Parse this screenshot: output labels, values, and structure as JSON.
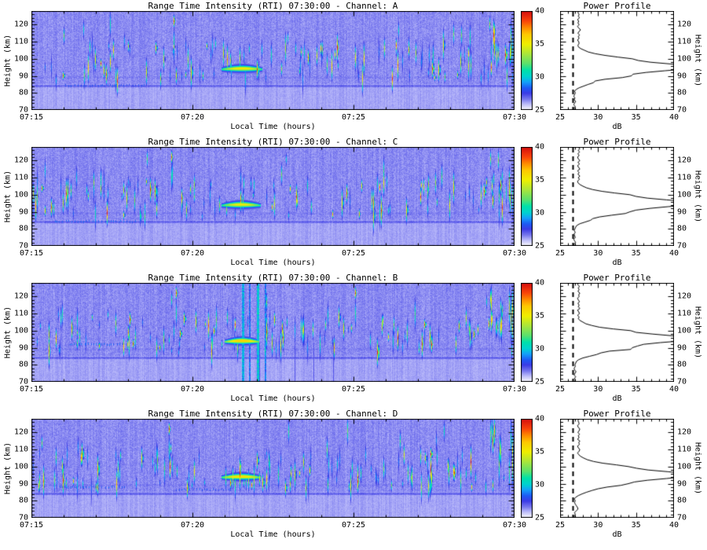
{
  "labels": {
    "profile_title": "Power Profile",
    "time_label": "Local Time (hours)",
    "height_label": "Height (km)",
    "db_label": "dB",
    "time_ticks": [
      "07:15",
      "07:20",
      "07:25",
      "07:30"
    ],
    "height_ticks": [
      "70",
      "80",
      "90",
      "100",
      "110",
      "120"
    ],
    "colorbar_ticks": [
      "40",
      "35",
      "30",
      "25"
    ],
    "db_ticks": [
      "25",
      "30",
      "35",
      "40"
    ]
  },
  "channels": [
    {
      "id": "A",
      "title": "Range Time Intensity (RTI) 07:30:00 - Channel: A"
    },
    {
      "id": "C",
      "title": "Range Time Intensity (RTI) 07:30:00 - Channel: C"
    },
    {
      "id": "B",
      "title": "Range Time Intensity (RTI) 07:30:00 - Channel: B"
    },
    {
      "id": "D",
      "title": "Range Time Intensity (RTI) 07:30:00 - Channel: D"
    }
  ],
  "colors": {
    "axis": "#000000",
    "plot_bg": "#ffffff",
    "colormap": [
      [
        25.0,
        "#fafaff"
      ],
      [
        26.0,
        "#afaff8"
      ],
      [
        26.6,
        "#7878ee"
      ],
      [
        27.5,
        "#3c3ce6"
      ],
      [
        28.3,
        "#1e5af5"
      ],
      [
        29.2,
        "#14a0fa"
      ],
      [
        30.0,
        "#00d2d2"
      ],
      [
        31.0,
        "#00e1aa"
      ],
      [
        32.0,
        "#5ae16e"
      ],
      [
        33.5,
        "#aae63c"
      ],
      [
        35.0,
        "#f0f000"
      ],
      [
        36.5,
        "#ffc800"
      ],
      [
        37.5,
        "#ff8c00"
      ],
      [
        38.5,
        "#fa460a"
      ],
      [
        40.0,
        "#d70f0f"
      ]
    ]
  },
  "chart_data": [
    {
      "name": "channel-A",
      "rti": {
        "type": "heatmap",
        "title": "Range Time Intensity (RTI) 07:30:00 - Channel: A",
        "x_range": [
          "07:15",
          "07:30"
        ],
        "x_minutes": 15,
        "y_range": [
          70,
          128
        ],
        "value_range": [
          25,
          40
        ],
        "background_db": 26.3,
        "seed": 101,
        "streaks": 115,
        "dark_band_h": [
          83.2,
          84.9
        ],
        "features": {
          "blob": {
            "x0": 0.395,
            "x1": 0.478,
            "h": 93.8,
            "peak": 35.5
          },
          "red_tops": [
            0.295
          ],
          "edge_cluster": 0.962,
          "low_streaks": [
            {
              "x0": 0.07,
              "x1": 0.24,
              "h": 84.3,
              "peak": 28.8
            }
          ],
          "vertical_bands": [],
          "dark_lines": []
        }
      },
      "profile": {
        "type": "line",
        "title": "Power Profile",
        "xlabel": "dB",
        "x_range": [
          25,
          40
        ],
        "y_range": [
          70,
          128
        ],
        "noise_floor_db": 26.7,
        "h_start": 70,
        "h_step": 1,
        "db": [
          26.9,
          26.85,
          27.0,
          26.8,
          26.9,
          27.05,
          26.85,
          26.95,
          26.8,
          26.9,
          27.0,
          26.9,
          27.1,
          27.5,
          28.1,
          28.7,
          29.4,
          29.6,
          30.9,
          33.2,
          34.4,
          34.6,
          36.3,
          38.8,
          41.5,
          42.5,
          41.8,
          39.5,
          36.9,
          35.3,
          34.5,
          32.6,
          30.9,
          29.6,
          28.7,
          28.2,
          27.7,
          27.4,
          27.35,
          27.5,
          27.45,
          27.3,
          27.5,
          27.4,
          27.55,
          27.35,
          27.5,
          27.7,
          27.45,
          27.3,
          27.5,
          27.35,
          27.45,
          27.3,
          27.55,
          27.4,
          27.5,
          27.35,
          27.45
        ]
      }
    },
    {
      "name": "channel-C",
      "rti": {
        "type": "heatmap",
        "title": "Range Time Intensity (RTI) 07:30:00 - Channel: C",
        "x_range": [
          "07:15",
          "07:30"
        ],
        "x_minutes": 15,
        "y_range": [
          70,
          128
        ],
        "value_range": [
          25,
          40
        ],
        "background_db": 26.3,
        "seed": 202,
        "streaks": 120,
        "dark_band_h": [
          83.2,
          84.9
        ],
        "features": {
          "blob": {
            "x0": 0.395,
            "x1": 0.475,
            "h": 93.7,
            "peak": 35.2
          },
          "red_tops": [
            0.29
          ],
          "edge_cluster": 0.963,
          "low_streaks": [
            {
              "x0": 0.05,
              "x1": 0.22,
              "h": 84.3,
              "peak": 29.5
            }
          ],
          "vertical_bands": [],
          "dark_lines": []
        }
      },
      "profile": {
        "type": "line",
        "title": "Power Profile",
        "xlabel": "dB",
        "x_range": [
          25,
          40
        ],
        "y_range": [
          70,
          128
        ],
        "noise_floor_db": 26.7,
        "h_start": 70,
        "h_step": 1,
        "db": [
          26.95,
          26.8,
          27.05,
          26.9,
          26.8,
          27.0,
          26.9,
          26.85,
          27.0,
          26.85,
          26.95,
          27.05,
          27.2,
          27.6,
          28.3,
          29.0,
          29.3,
          30.2,
          31.8,
          33.6,
          34.2,
          35.0,
          36.8,
          39.2,
          41.8,
          42.8,
          41.5,
          39.0,
          36.5,
          35.0,
          34.2,
          32.2,
          30.5,
          29.3,
          28.5,
          28.0,
          27.6,
          27.35,
          27.3,
          27.55,
          27.4,
          27.6,
          27.35,
          27.5,
          27.3,
          27.6,
          27.45,
          27.3,
          27.55,
          27.35,
          27.6,
          27.4,
          27.3,
          27.5,
          27.35,
          27.55,
          27.4,
          27.6,
          27.35
        ]
      }
    },
    {
      "name": "channel-B",
      "rti": {
        "type": "heatmap",
        "title": "Range Time Intensity (RTI) 07:30:00 - Channel: B",
        "x_range": [
          "07:15",
          "07:30"
        ],
        "x_minutes": 15,
        "y_range": [
          70,
          128
        ],
        "value_range": [
          25,
          40
        ],
        "background_db": 26.3,
        "seed": 303,
        "streaks": 118,
        "dark_band_h": [
          83.2,
          84.9
        ],
        "features": {
          "blob": {
            "x0": 0.4,
            "x1": 0.47,
            "h": 93.5,
            "peak": 36.5
          },
          "red_tops": [
            0.3,
            0.67
          ],
          "edge_cluster": 0.962,
          "low_streaks": [
            {
              "x0": 0.08,
              "x1": 0.2,
              "h": 92.0,
              "peak": 29.5
            }
          ],
          "vertical_bands": [
            {
              "x": 0.437,
              "peak": 30.5,
              "w": 3
            },
            {
              "x": 0.452,
              "peak": 29.5,
              "w": 2
            },
            {
              "x": 0.467,
              "peak": 31.0,
              "w": 3
            },
            {
              "x": 0.483,
              "peak": 29.8,
              "w": 2
            }
          ],
          "dark_lines": [
            0.472,
            0.545,
            0.585,
            0.625
          ]
        }
      },
      "profile": {
        "type": "line",
        "title": "Power Profile",
        "xlabel": "dB",
        "x_range": [
          25,
          40
        ],
        "y_range": [
          70,
          128
        ],
        "noise_floor_db": 26.7,
        "h_start": 70,
        "h_step": 1,
        "db": [
          26.85,
          27.0,
          26.9,
          27.05,
          26.85,
          26.95,
          27.1,
          26.9,
          26.85,
          27.0,
          26.95,
          27.05,
          27.15,
          27.45,
          28.0,
          28.9,
          29.8,
          30.4,
          31.5,
          34.3,
          34.5,
          35.2,
          36.0,
          38.2,
          41.0,
          42.2,
          41.6,
          39.8,
          37.2,
          35.0,
          34.3,
          32.0,
          30.2,
          29.2,
          28.4,
          28.0,
          27.6,
          27.4,
          27.5,
          27.3,
          27.55,
          27.45,
          27.3,
          27.6,
          27.4,
          27.5,
          27.35,
          27.55,
          27.4,
          27.3,
          27.5,
          27.45,
          27.6,
          27.35,
          27.5,
          27.4,
          27.55,
          27.3,
          27.45
        ]
      }
    },
    {
      "name": "channel-D",
      "rti": {
        "type": "heatmap",
        "title": "Range Time Intensity (RTI) 07:30:00 - Channel: D",
        "x_range": [
          "07:15",
          "07:30"
        ],
        "x_minutes": 15,
        "y_range": [
          70,
          128
        ],
        "value_range": [
          25,
          40
        ],
        "background_db": 26.3,
        "seed": 404,
        "streaks": 135,
        "dark_band_h": [
          83.2,
          84.9
        ],
        "features": {
          "blob": {
            "x0": 0.395,
            "x1": 0.475,
            "h": 93.6,
            "peak": 35.8
          },
          "red_tops": [
            0.285
          ],
          "edge_cluster": 0.96,
          "low_streaks": [
            {
              "x0": 0.06,
              "x1": 0.2,
              "h": 88.0,
              "peak": 29.3
            },
            {
              "x0": 0.3,
              "x1": 0.42,
              "h": 86.5,
              "peak": 28.8
            }
          ],
          "vertical_bands": [],
          "dark_lines": []
        }
      },
      "profile": {
        "type": "line",
        "title": "Power Profile",
        "xlabel": "dB",
        "x_range": [
          25,
          40
        ],
        "y_range": [
          70,
          128
        ],
        "noise_floor_db": 26.7,
        "h_start": 70,
        "h_step": 1,
        "db": [
          26.9,
          26.85,
          27.0,
          26.9,
          27.1,
          27.35,
          27.3,
          27.15,
          27.0,
          26.9,
          27.0,
          26.85,
          27.05,
          27.4,
          27.9,
          28.5,
          29.2,
          30.0,
          31.2,
          33.0,
          34.0,
          34.8,
          36.5,
          39.0,
          41.2,
          42.0,
          41.4,
          39.2,
          36.6,
          35.1,
          34.0,
          32.4,
          30.6,
          29.4,
          28.6,
          28.1,
          27.7,
          27.45,
          27.3,
          27.5,
          27.6,
          27.4,
          27.3,
          27.55,
          27.45,
          27.6,
          27.3,
          27.5,
          27.4,
          27.55,
          27.35,
          27.5,
          27.6,
          27.4,
          27.3,
          27.5,
          27.45,
          27.35,
          27.5
        ]
      }
    }
  ]
}
